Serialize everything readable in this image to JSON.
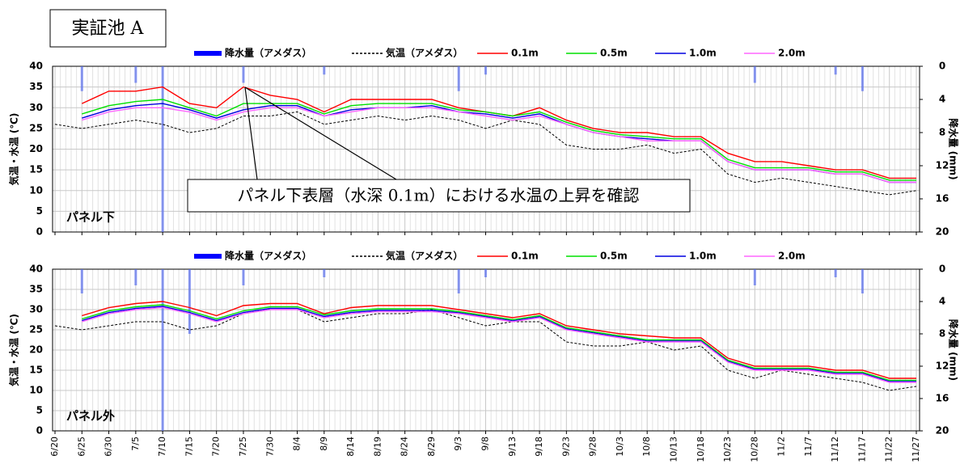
{
  "title": "実証池 A",
  "annotation": "パネル下表層（水深 0.1m）における水温の上昇を確認",
  "chart_data": [
    {
      "type": "line",
      "panel_label": "パネル下",
      "ylabel": "気温・水温 (℃)",
      "y2label": "降水量 (mm)",
      "ylim": [
        0,
        40
      ],
      "yticks": [
        0,
        5,
        10,
        15,
        20,
        25,
        30,
        35,
        40
      ],
      "y2lim": [
        20,
        0
      ],
      "y2ticks": [
        0,
        4,
        8,
        12,
        16,
        20
      ],
      "grid": true,
      "series": [
        {
          "name": "降水量（アメダス）",
          "type": "bar",
          "axis": "y2",
          "color": "#5a6ff0",
          "values": [
            0,
            3,
            0,
            2,
            20,
            0,
            0,
            2,
            0,
            0,
            1,
            0,
            0,
            0,
            0,
            3,
            1,
            0,
            0,
            0,
            0,
            0,
            0,
            0,
            0,
            0,
            2,
            0,
            0,
            1,
            3,
            0,
            0
          ]
        },
        {
          "name": "気温（アメダス）",
          "style": "dashed",
          "color": "#000000",
          "values": [
            26,
            25,
            26,
            27,
            26,
            24,
            25,
            28,
            28,
            29,
            26,
            27,
            28,
            27,
            28,
            27,
            25,
            27,
            26,
            21,
            20,
            20,
            21,
            19,
            20,
            14,
            12,
            13,
            12,
            11,
            10,
            9,
            10
          ]
        },
        {
          "name": "0.1m",
          "color": "#ff0000",
          "values": [
            null,
            31,
            34,
            34,
            35,
            31,
            30,
            35,
            33,
            32,
            29,
            32,
            32,
            32,
            32,
            30,
            29,
            28,
            30,
            27,
            25,
            24,
            24,
            23,
            23,
            19,
            17,
            17,
            16,
            15,
            15,
            13,
            13
          ]
        },
        {
          "name": "0.5m",
          "color": "#00e000",
          "values": [
            null,
            28.5,
            30.5,
            31.5,
            32,
            30,
            28,
            31,
            31,
            31,
            28.5,
            30.5,
            31,
            31,
            31,
            29.5,
            29,
            28,
            29,
            26.5,
            24.5,
            23.5,
            23,
            22.5,
            22.5,
            17.5,
            15.5,
            15.5,
            15.5,
            14.5,
            14.5,
            12.5,
            12.5
          ]
        },
        {
          "name": "1.0m",
          "color": "#0000e0",
          "values": [
            null,
            27.5,
            29.5,
            30.5,
            31,
            29.5,
            27.5,
            29.5,
            30.5,
            30.5,
            28,
            29.5,
            30,
            30,
            30.5,
            29,
            28.5,
            27.5,
            28.5,
            26,
            24,
            23,
            22.5,
            22,
            22,
            17,
            15,
            15,
            15,
            14,
            14,
            12,
            12
          ]
        },
        {
          "name": "2.0m",
          "color": "#ff66ff",
          "values": [
            null,
            27,
            29,
            30,
            30,
            29,
            27,
            29,
            30,
            30,
            28,
            29,
            30,
            30,
            30,
            29,
            28,
            27,
            28,
            26,
            24,
            23,
            22,
            22,
            22,
            17,
            15,
            15,
            15,
            14,
            14,
            12,
            12
          ]
        }
      ]
    },
    {
      "type": "line",
      "panel_label": "パネル外",
      "ylabel": "気温・水温 (℃)",
      "y2label": "降水量 (mm)",
      "ylim": [
        0,
        40
      ],
      "yticks": [
        0,
        5,
        10,
        15,
        20,
        25,
        30,
        35,
        40
      ],
      "y2lim": [
        20,
        0
      ],
      "y2ticks": [
        0,
        4,
        8,
        12,
        16,
        20
      ],
      "grid": true,
      "categories": [
        "6/20",
        "6/25",
        "6/30",
        "7/5",
        "7/10",
        "7/15",
        "7/20",
        "7/25",
        "7/30",
        "8/4",
        "8/9",
        "8/14",
        "8/19",
        "8/24",
        "8/29",
        "9/3",
        "9/8",
        "9/13",
        "9/18",
        "9/23",
        "9/28",
        "10/3",
        "10/8",
        "10/13",
        "10/18",
        "10/23",
        "10/28",
        "11/2",
        "11/7",
        "11/12",
        "11/17",
        "11/22",
        "11/27"
      ],
      "series": [
        {
          "name": "降水量（アメダス）",
          "type": "bar",
          "axis": "y2",
          "color": "#5a6ff0",
          "values": [
            0,
            3,
            0,
            2,
            20,
            8,
            0,
            2,
            0,
            0,
            1,
            0,
            0,
            0,
            0,
            3,
            1,
            0,
            0,
            0,
            0,
            0,
            0,
            0,
            0,
            0,
            2,
            0,
            0,
            1,
            3,
            0,
            0
          ]
        },
        {
          "name": "気温（アメダス）",
          "style": "dashed",
          "color": "#000000",
          "values": [
            26,
            25,
            26,
            27,
            27,
            25,
            26,
            29,
            30,
            30,
            27,
            28,
            29,
            29,
            30,
            28,
            26,
            27,
            27,
            22,
            21,
            21,
            22,
            20,
            21,
            15,
            13,
            15,
            14,
            13,
            12,
            10,
            11
          ]
        },
        {
          "name": "0.1m",
          "color": "#ff0000",
          "values": [
            null,
            28.5,
            30.5,
            31.5,
            32,
            30.5,
            28.5,
            31,
            31.5,
            31.5,
            29,
            30.5,
            31,
            31,
            31,
            30,
            29,
            28,
            29,
            26,
            25,
            24,
            23.5,
            23,
            23,
            18,
            16,
            16,
            16,
            15,
            15,
            13,
            13
          ]
        },
        {
          "name": "0.5m",
          "color": "#00e000",
          "values": [
            null,
            27.7,
            29.7,
            30.7,
            31.2,
            29.7,
            27.7,
            29.7,
            30.7,
            30.7,
            28.7,
            29.7,
            30.2,
            30.2,
            30.2,
            29.5,
            28.5,
            27.5,
            28.5,
            25.5,
            24.5,
            23.5,
            22.5,
            22.5,
            22.5,
            17.5,
            15.5,
            15.5,
            15.5,
            14.5,
            14.5,
            12.5,
            12.5
          ]
        },
        {
          "name": "1.0m",
          "color": "#0000e0",
          "values": [
            null,
            27.3,
            29.3,
            30.3,
            30.8,
            29.3,
            27.3,
            29.3,
            30.3,
            30.3,
            28.3,
            29.3,
            29.8,
            29.8,
            29.8,
            29.2,
            28.2,
            27.2,
            28.2,
            25.2,
            24.2,
            23.2,
            22.2,
            22.2,
            22.2,
            17.2,
            15.2,
            15.2,
            15.2,
            14.2,
            14.2,
            12.2,
            12.2
          ]
        },
        {
          "name": "2.0m",
          "color": "#ff66ff",
          "values": [
            null,
            27,
            29,
            30,
            30.5,
            29,
            27,
            29,
            30,
            30,
            28,
            29,
            29.5,
            29.5,
            29.5,
            29,
            28,
            27,
            28,
            25,
            24,
            23,
            22,
            22,
            22,
            17,
            15,
            15,
            15,
            14,
            14,
            12,
            12
          ]
        }
      ]
    }
  ]
}
